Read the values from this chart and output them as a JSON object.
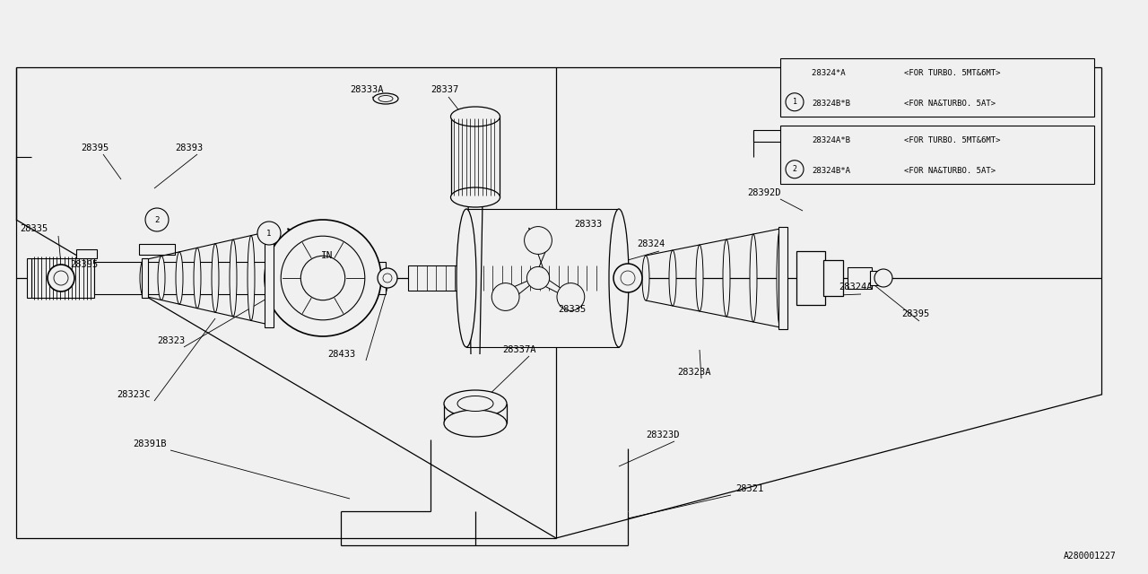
{
  "bg_color": "#f0f0f0",
  "line_color": "#000000",
  "fig_width": 12.8,
  "fig_height": 6.4,
  "dpi": 100,
  "part_number_code": "A280001227",
  "legend1_rows": [
    {
      "part": "28324B*B",
      "desc": "<FOR NA&TURBO. 5AT>"
    },
    {
      "part": "28324*A ",
      "desc": "<FOR TURBO. 5MT&6MT>"
    }
  ],
  "legend2_rows": [
    {
      "part": "28324B*A",
      "desc": "<FOR NA&TURBO. 5AT>"
    },
    {
      "part": "28324A*B",
      "desc": "<FOR TURBO. 5MT&6MT>"
    }
  ]
}
